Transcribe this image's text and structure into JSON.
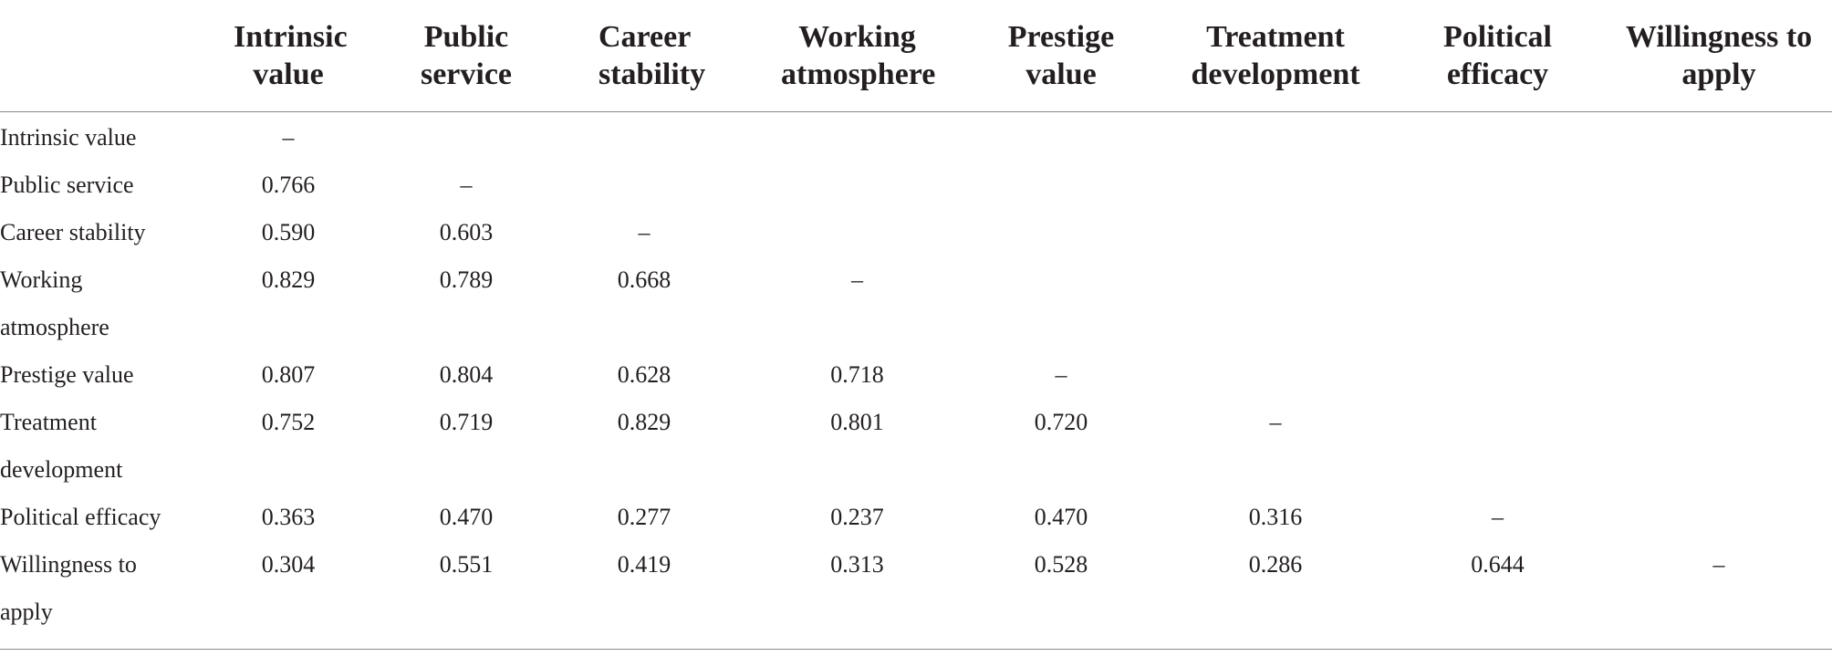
{
  "table": {
    "columns": [
      "",
      "Intrinsic value",
      "Public service",
      "Career stability",
      "Working atmosphere",
      "Prestige value",
      "Treatment development",
      "Political efficacy",
      "Willingness to apply"
    ],
    "rows": [
      {
        "label": "Intrinsic value",
        "cells": [
          "–",
          "",
          "",
          "",
          "",
          "",
          "",
          ""
        ]
      },
      {
        "label": "Public service",
        "cells": [
          "0.766",
          "–",
          "",
          "",
          "",
          "",
          "",
          ""
        ]
      },
      {
        "label": "Career stability",
        "cells": [
          "0.590",
          "0.603",
          "–",
          "",
          "",
          "",
          "",
          ""
        ]
      },
      {
        "label": "Working atmosphere",
        "cells": [
          "0.829",
          "0.789",
          "0.668",
          "–",
          "",
          "",
          "",
          ""
        ]
      },
      {
        "label": "Prestige value",
        "cells": [
          "0.807",
          "0.804",
          "0.628",
          "0.718",
          "–",
          "",
          "",
          ""
        ]
      },
      {
        "label": "Treatment development",
        "cells": [
          "0.752",
          "0.719",
          "0.829",
          "0.801",
          "0.720",
          "–",
          "",
          ""
        ]
      },
      {
        "label": "Political efficacy",
        "cells": [
          "0.363",
          "0.470",
          "0.277",
          "0.237",
          "0.470",
          "0.316",
          "–",
          ""
        ]
      },
      {
        "label": "Willingness to apply",
        "cells": [
          "0.304",
          "0.551",
          "0.419",
          "0.313",
          "0.528",
          "0.286",
          "0.644",
          "–"
        ]
      }
    ]
  }
}
